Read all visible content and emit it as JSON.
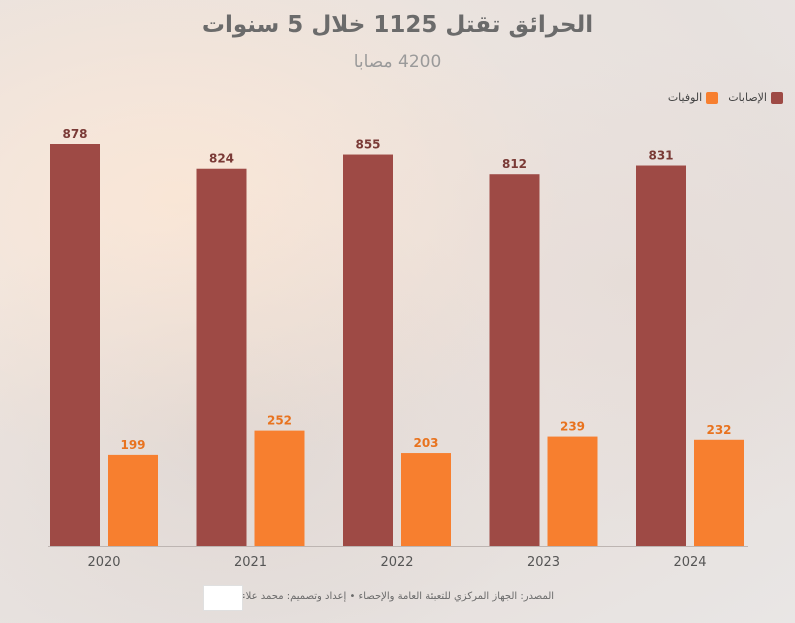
{
  "header": {
    "title": "الحرائق تقتل 1125 خلال 5 سنوات",
    "subtitle": "4200 مصابا"
  },
  "footer": {
    "source": "المصدر: الجهاز المركزي للتعبئة العامة والإحصاء • إعداد وتصميم: محمد علاء"
  },
  "chart_data": {
    "type": "bar",
    "categories": [
      "2020",
      "2021",
      "2022",
      "2023",
      "2024"
    ],
    "series": [
      {
        "name": "الإصابات",
        "values": [
          878,
          824,
          855,
          812,
          831
        ],
        "color": "#9e4a45"
      },
      {
        "name": "الوفيات",
        "values": [
          199,
          252,
          203,
          239,
          232
        ],
        "color": "#f77f2f"
      }
    ],
    "ylim": [
      0,
      878
    ],
    "grid": false,
    "legend_position": "top-right",
    "data_labels": true
  }
}
